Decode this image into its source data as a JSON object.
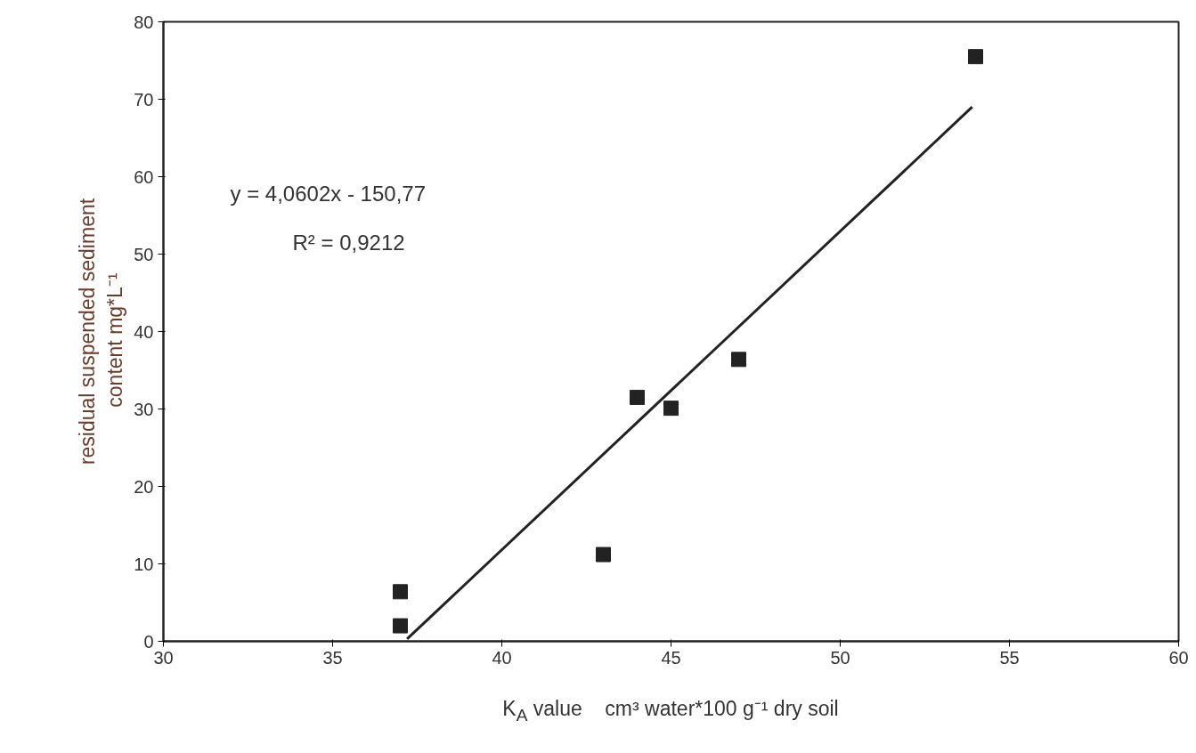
{
  "chart_data": {
    "type": "scatter",
    "xlabel": "K$_{A}$ value    cm³ water*100 g⁻¹ dry soil",
    "ylabel": "residual suspended sediment\ncontent    mg*L⁻¹",
    "x": [
      37,
      37,
      43,
      44,
      45,
      47,
      54
    ],
    "series": [
      {
        "color": "#222222",
        "marker": "square",
        "values": [
          6.4,
          2.0,
          11.2,
          31.5,
          30.1,
          36.4,
          75.5
        ]
      },
      {
        "type": "line",
        "color": "#222222",
        "x": [
          37.2,
          53.9
        ],
        "values": [
          0.3,
          69
        ]
      }
    ],
    "annotations": [
      "y = 4,0602x - 150,77",
      "R² = 0,9212"
    ],
    "xlim": [
      30,
      60
    ],
    "xticks": [
      30,
      35,
      40,
      45,
      50,
      55,
      60
    ],
    "ylim": [
      0,
      80
    ],
    "yticks": [
      0,
      10,
      20,
      30,
      40,
      50,
      60,
      70,
      80
    ],
    "grid": false
  }
}
